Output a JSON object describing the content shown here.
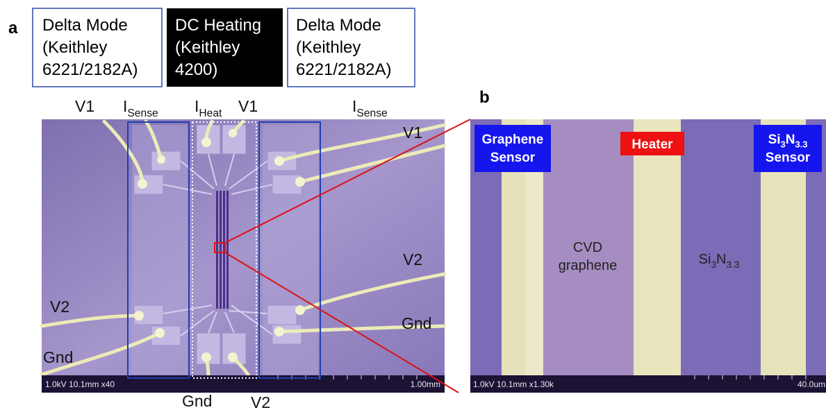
{
  "panel_labels": [
    "a",
    "b"
  ],
  "instrument_boxes": [
    {
      "lines": [
        "Delta Mode",
        "(Keithley",
        "6221/2182A)"
      ]
    },
    {
      "lines": [
        "DC Heating",
        "(Keithley",
        "4200)"
      ]
    },
    {
      "lines": [
        "Delta Mode",
        "(Keithley",
        "6221/2182A)"
      ]
    }
  ],
  "panel_a": {
    "terminal_labels": [
      [
        {
          "text": "V1"
        }
      ],
      [
        {
          "text": "I"
        },
        {
          "text": "Sense",
          "sub": true
        }
      ],
      [
        {
          "text": "I"
        },
        {
          "text": "Heat",
          "sub": true
        }
      ],
      [
        {
          "text": "V1"
        }
      ],
      [
        {
          "text": "I"
        },
        {
          "text": "Sense",
          "sub": true
        }
      ],
      [
        {
          "text": "V1"
        }
      ],
      [
        {
          "text": "V2"
        }
      ],
      [
        {
          "text": "Gnd"
        }
      ],
      [
        {
          "text": "V2"
        }
      ],
      [
        {
          "text": "Gnd"
        }
      ],
      [
        {
          "text": "Gnd"
        }
      ],
      [
        {
          "text": "V2"
        }
      ]
    ],
    "scale_bar": {
      "info": "1.0kV 10.1mm x40",
      "length": "1.00mm"
    }
  },
  "panel_b": {
    "region_labels": [
      {
        "lines": [
          [
            {
              "text": "Graphene"
            }
          ],
          [
            {
              "text": "Sensor"
            }
          ]
        ]
      },
      {
        "lines": [
          [
            {
              "text": "Heater"
            }
          ]
        ]
      },
      {
        "lines": [
          [
            {
              "text": "Si"
            },
            {
              "text": "3",
              "sub": true
            },
            {
              "text": "N"
            },
            {
              "text": "3.3",
              "sub": true
            }
          ],
          [
            {
              "text": "Sensor"
            }
          ]
        ]
      },
      {
        "lines": [
          [
            {
              "text": "CVD"
            }
          ],
          [
            {
              "text": "graphene"
            }
          ]
        ]
      },
      {
        "lines": [
          [
            {
              "text": "Si"
            },
            {
              "text": "3",
              "sub": true
            },
            {
              "text": "N"
            },
            {
              "text": "3.3",
              "sub": true
            }
          ]
        ]
      }
    ],
    "scale_bar": {
      "info": "1.0kV 10.1mm x1.30k",
      "length": "40.0um"
    }
  }
}
